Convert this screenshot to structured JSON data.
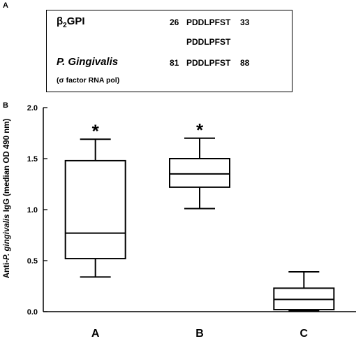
{
  "panel_a": {
    "letter": "A",
    "protein1": {
      "name_main": "β",
      "name_sub": "2",
      "name_rest": "GPI",
      "start": "26",
      "sequence": "PDDLPFST",
      "end": "33"
    },
    "shared_sequence": "PDDLPFST",
    "protein2": {
      "name": "P. Gingivalis",
      "start": "81",
      "sequence": "PDDLPFST",
      "end": "88",
      "note": "(σ factor RNA pol)"
    }
  },
  "panel_b": {
    "letter": "B"
  },
  "chart_data": {
    "type": "box",
    "ylabel_prefix": "Anti-",
    "ylabel_italic": "P. gingivalis",
    "ylabel_suffix": " IgG (median OD 490 nm)",
    "ylim": [
      0,
      2.0
    ],
    "yticks": [
      "0.0",
      "0.5",
      "1.0",
      "1.5",
      "2.0"
    ],
    "categories": [
      "A",
      "B",
      "C"
    ],
    "boxes": [
      {
        "category": "A",
        "whisker_low": 0.34,
        "q1": 0.52,
        "median": 0.77,
        "q3": 1.48,
        "whisker_high": 1.69,
        "significant": true
      },
      {
        "category": "B",
        "whisker_low": 1.01,
        "q1": 1.22,
        "median": 1.35,
        "q3": 1.5,
        "whisker_high": 1.7,
        "significant": true
      },
      {
        "category": "C",
        "whisker_low": 0.01,
        "q1": 0.02,
        "median": 0.12,
        "q3": 0.23,
        "whisker_high": 0.39,
        "significant": false
      }
    ],
    "significance_marker": "*",
    "grid": false
  }
}
